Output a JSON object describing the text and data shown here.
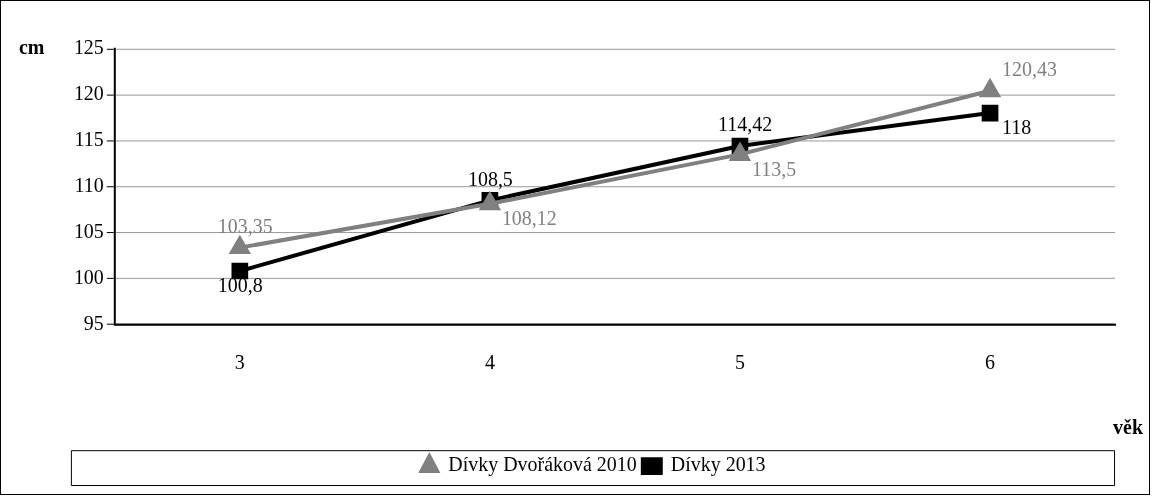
{
  "chart_data": {
    "type": "line",
    "xlabel": "věk",
    "ylabel": "cm",
    "categories": [
      "3",
      "4",
      "5",
      "6"
    ],
    "series": [
      {
        "name": "Dívky Dvořáková 2010",
        "color": "#808080",
        "marker": "triangle",
        "values": [
          103.35,
          108.12,
          113.5,
          120.43
        ],
        "value_labels": [
          "103,35",
          "108,12",
          "113,5",
          "120,43"
        ]
      },
      {
        "name": "Dívky 2013",
        "color": "#000000",
        "marker": "square",
        "values": [
          100.8,
          108.5,
          114.42,
          118
        ],
        "value_labels": [
          "100,8",
          "108,5",
          "114,42",
          "118"
        ]
      }
    ],
    "ylim": [
      95,
      125
    ],
    "yticks": [
      95,
      100,
      105,
      110,
      115,
      120,
      125
    ],
    "grid": "y",
    "legend": "bottom",
    "line_style": "solid"
  }
}
